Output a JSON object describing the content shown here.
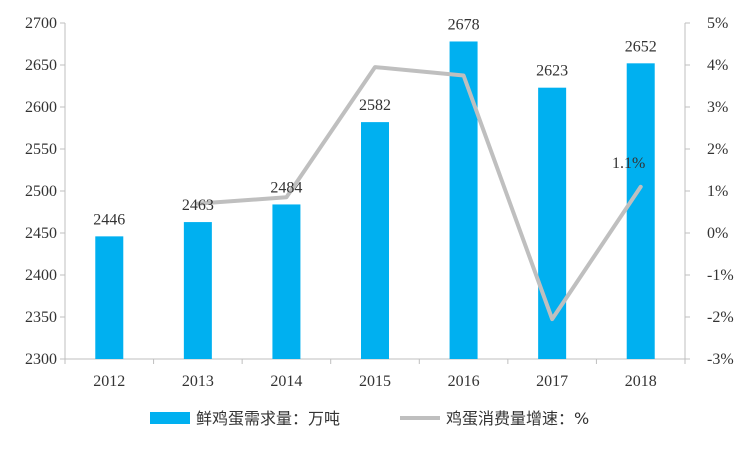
{
  "chart_data": {
    "type": "bar",
    "categories": [
      "2012",
      "2013",
      "2014",
      "2015",
      "2016",
      "2017",
      "2018"
    ],
    "series": [
      {
        "name": "鲜鸡蛋需求量：万吨",
        "type": "bar",
        "axis": "left",
        "color": "#00B0F0",
        "values": [
          2446,
          2463,
          2484,
          2582,
          2678,
          2623,
          2652
        ],
        "labels": [
          "2446",
          "2463",
          "2484",
          "2582",
          "2678",
          "2623",
          "2652"
        ]
      },
      {
        "name": "鸡蛋消费量增速：%",
        "type": "line",
        "axis": "right",
        "color": "#BFBFBF",
        "values": [
          null,
          0.7,
          0.85,
          3.95,
          3.75,
          -2.05,
          1.1
        ],
        "labels": [
          "",
          "",
          "",
          "",
          "",
          "",
          "1.1%"
        ]
      }
    ],
    "left_axis": {
      "ylim": [
        2300,
        2700
      ],
      "ticks": [
        "2300",
        "2350",
        "2400",
        "2450",
        "2500",
        "2550",
        "2600",
        "2650",
        "2700"
      ]
    },
    "right_axis": {
      "ylim": [
        -3,
        5
      ],
      "ticks": [
        "-3%",
        "-2%",
        "-1%",
        "0%",
        "1%",
        "2%",
        "3%",
        "4%",
        "5%"
      ]
    },
    "legend_position": "bottom",
    "grid": false
  }
}
